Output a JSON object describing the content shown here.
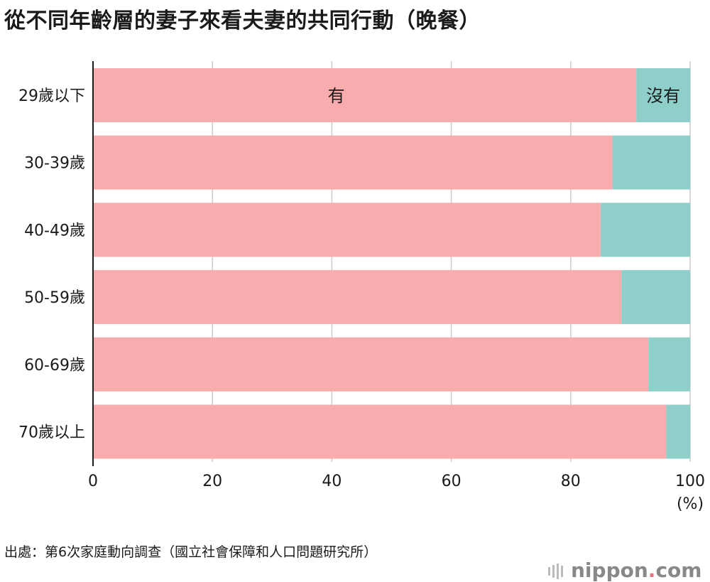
{
  "title": "從不同年齡層的妻子來看夫妻的共同行動（晚餐）",
  "source": "出處：第6次家庭動向調查（國立社會保障和人口問題研究所）",
  "brand": {
    "name": "nippon",
    "dot": ".",
    "tld": "com"
  },
  "colors": {
    "yes": "#f9acae",
    "no": "#8ecfca",
    "grid": "#cccccc",
    "axis": "#1a1a1a"
  },
  "chart_data": {
    "type": "bar",
    "orientation": "horizontal",
    "stacked": true,
    "categories": [
      "29歲以下",
      "30-39歲",
      "40-49歲",
      "50-59歲",
      "60-69歲",
      "70歲以上"
    ],
    "series": [
      {
        "name": "有",
        "values": [
          91,
          87,
          85,
          88.5,
          93,
          96
        ]
      },
      {
        "name": "沒有",
        "values": [
          9,
          13,
          15,
          11.5,
          7,
          4
        ]
      }
    ],
    "xlim": [
      0,
      100
    ],
    "xticks": [
      0,
      20,
      40,
      60,
      80,
      100
    ],
    "xunit": "(%)",
    "grid": true
  }
}
